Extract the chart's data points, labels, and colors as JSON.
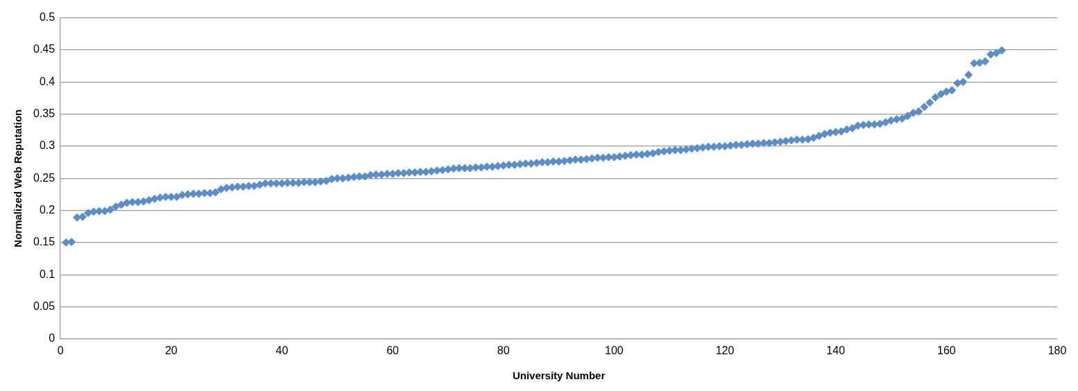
{
  "chart_data": {
    "type": "scatter",
    "xlabel": "University Number",
    "ylabel": "Normalized Web Reputation",
    "xlim": [
      0,
      180
    ],
    "xticks": [
      0,
      20,
      40,
      60,
      80,
      100,
      120,
      140,
      160,
      180
    ],
    "ylim": [
      0,
      0.5
    ],
    "yticks": [
      0,
      0.05,
      0.1,
      0.15,
      0.2,
      0.25,
      0.3,
      0.35,
      0.4,
      0.45,
      0.5
    ],
    "grid": "y",
    "marker": "diamond",
    "legend": false,
    "series": [
      {
        "color": "#5a8ecb",
        "x": [
          1,
          2,
          3,
          4,
          5,
          6,
          7,
          8,
          9,
          10,
          11,
          12,
          13,
          14,
          15,
          16,
          17,
          18,
          19,
          20,
          21,
          22,
          23,
          24,
          25,
          26,
          27,
          28,
          29,
          30,
          31,
          32,
          33,
          34,
          35,
          36,
          37,
          38,
          39,
          40,
          41,
          42,
          43,
          44,
          45,
          46,
          47,
          48,
          49,
          50,
          51,
          52,
          53,
          54,
          55,
          56,
          57,
          58,
          59,
          60,
          61,
          62,
          63,
          64,
          65,
          66,
          67,
          68,
          69,
          70,
          71,
          72,
          73,
          74,
          75,
          76,
          77,
          78,
          79,
          80,
          81,
          82,
          83,
          84,
          85,
          86,
          87,
          88,
          89,
          90,
          91,
          92,
          93,
          94,
          95,
          96,
          97,
          98,
          99,
          100,
          101,
          102,
          103,
          104,
          105,
          106,
          107,
          108,
          109,
          110,
          111,
          112,
          113,
          114,
          115,
          116,
          117,
          118,
          119,
          120,
          121,
          122,
          123,
          124,
          125,
          126,
          127,
          128,
          129,
          130,
          131,
          132,
          133,
          134,
          135,
          136,
          137,
          138,
          139,
          140,
          141,
          142,
          143,
          144,
          145,
          146,
          147,
          148,
          149,
          150,
          151,
          152,
          153,
          154,
          155,
          156,
          157,
          158,
          159,
          160,
          161,
          162,
          163,
          164,
          165,
          166,
          167,
          168,
          169,
          170
        ],
        "values": [
          0.15,
          0.151,
          0.189,
          0.19,
          0.196,
          0.198,
          0.199,
          0.199,
          0.201,
          0.206,
          0.209,
          0.212,
          0.213,
          0.213,
          0.214,
          0.216,
          0.218,
          0.22,
          0.221,
          0.221,
          0.221,
          0.224,
          0.225,
          0.226,
          0.226,
          0.227,
          0.227,
          0.228,
          0.233,
          0.235,
          0.236,
          0.237,
          0.237,
          0.238,
          0.238,
          0.24,
          0.242,
          0.242,
          0.242,
          0.242,
          0.243,
          0.243,
          0.243,
          0.244,
          0.244,
          0.244,
          0.245,
          0.246,
          0.249,
          0.25,
          0.25,
          0.251,
          0.252,
          0.253,
          0.253,
          0.255,
          0.256,
          0.256,
          0.257,
          0.257,
          0.258,
          0.258,
          0.259,
          0.259,
          0.26,
          0.26,
          0.261,
          0.262,
          0.263,
          0.264,
          0.265,
          0.266,
          0.266,
          0.266,
          0.267,
          0.267,
          0.268,
          0.268,
          0.269,
          0.27,
          0.271,
          0.271,
          0.272,
          0.273,
          0.273,
          0.274,
          0.275,
          0.275,
          0.276,
          0.276,
          0.277,
          0.278,
          0.279,
          0.279,
          0.28,
          0.281,
          0.282,
          0.282,
          0.283,
          0.283,
          0.284,
          0.285,
          0.286,
          0.287,
          0.287,
          0.288,
          0.289,
          0.291,
          0.292,
          0.293,
          0.294,
          0.294,
          0.295,
          0.296,
          0.297,
          0.298,
          0.299,
          0.299,
          0.3,
          0.3,
          0.301,
          0.302,
          0.302,
          0.303,
          0.304,
          0.304,
          0.305,
          0.305,
          0.306,
          0.307,
          0.308,
          0.309,
          0.31,
          0.31,
          0.311,
          0.313,
          0.316,
          0.319,
          0.321,
          0.322,
          0.323,
          0.326,
          0.328,
          0.332,
          0.333,
          0.334,
          0.334,
          0.335,
          0.337,
          0.34,
          0.342,
          0.343,
          0.347,
          0.352,
          0.354,
          0.361,
          0.368,
          0.376,
          0.381,
          0.385,
          0.387,
          0.398,
          0.4,
          0.411,
          0.429,
          0.43,
          0.432,
          0.443,
          0.445,
          0.449
        ]
      }
    ]
  }
}
